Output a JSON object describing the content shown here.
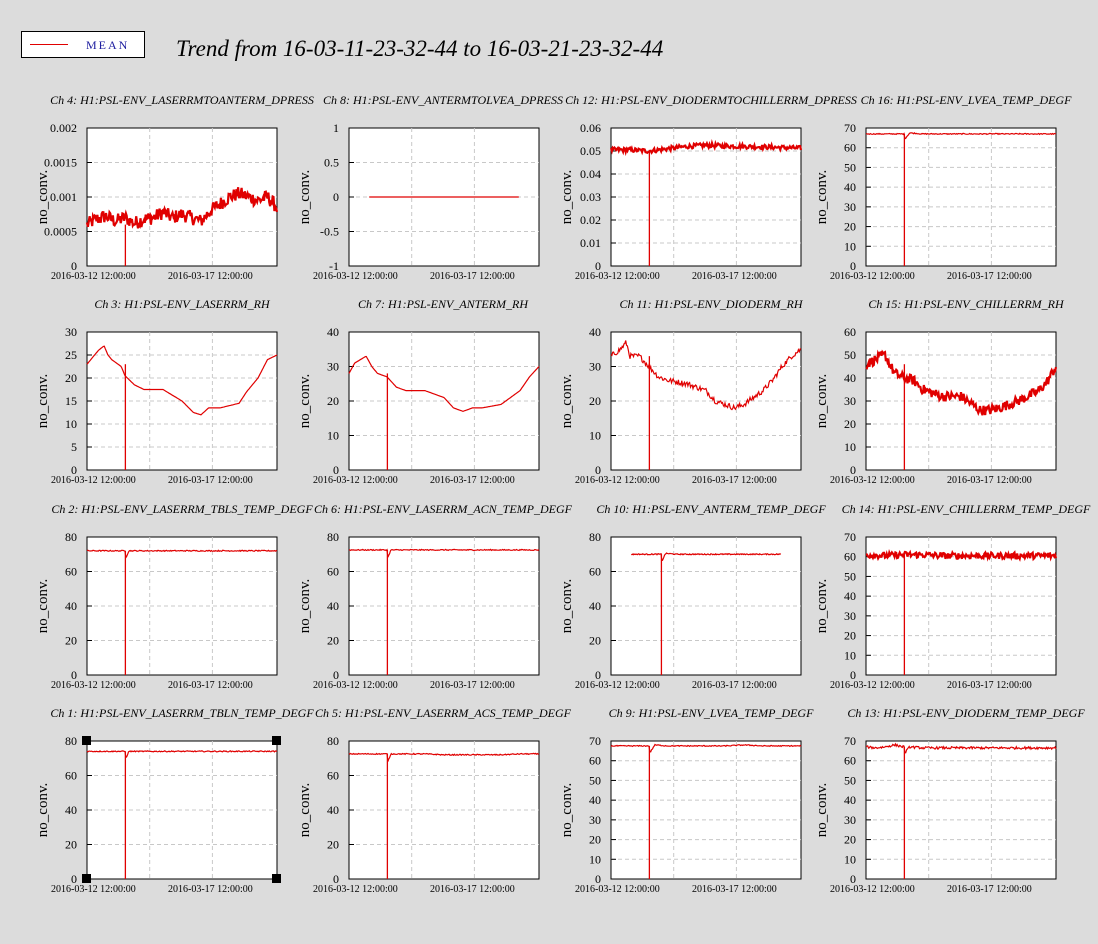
{
  "title": "Trend from 16-03-11-23-32-44 to 16-03-21-23-32-44",
  "legend": {
    "label": "MEAN",
    "color": "#e00000"
  },
  "chart_data": [
    {
      "type": "line",
      "title": "Ch 4: H1:PSL-ENV_LASERRMTOANTERM_DPRESS",
      "ylabel": "no_conv.",
      "yticks": [
        "0",
        "0.0005",
        "0.001",
        "0.0015",
        "0.002"
      ],
      "ylim": [
        0,
        0.002
      ],
      "xticks": [
        "2016-03-12 12:00:00",
        "2016-03-17 12:00:00"
      ],
      "xlim": [
        0,
        10
      ],
      "series": [
        {
          "color": "#e00000",
          "thick": true,
          "noise": 0.0001,
          "drop": {
            "x": 2.02,
            "to": 0
          },
          "x": [
            0,
            0.5,
            1,
            1.5,
            2,
            2.5,
            3,
            3.5,
            4,
            4.5,
            5,
            5.5,
            6,
            6.5,
            7,
            7.5,
            8,
            8.5,
            9,
            9.5,
            10
          ],
          "values": [
            0.0006,
            0.00068,
            0.00072,
            0.00065,
            0.0007,
            0.00062,
            0.00068,
            0.0007,
            0.00078,
            0.0007,
            0.00075,
            0.0007,
            0.00065,
            0.0008,
            0.0009,
            0.001,
            0.00105,
            0.001,
            0.00095,
            0.001,
            0.00085
          ]
        }
      ]
    },
    {
      "type": "line",
      "title": "Ch 8: H1:PSL-ENV_ANTERMTOLVEA_DPRESS",
      "ylabel": "no_conv.",
      "yticks": [
        "-1",
        "-0.5",
        "0",
        "0.5",
        "1"
      ],
      "ylim": [
        -1,
        1
      ],
      "xticks": [
        "2016-03-12 12:00:00",
        "2016-03-17 12:00:00"
      ],
      "xlim": [
        -1.35,
        11.35
      ],
      "series": [
        {
          "color": "#e00000",
          "x": [
            0,
            10
          ],
          "values": [
            0,
            0
          ]
        }
      ]
    },
    {
      "type": "line",
      "title": "Ch 12: H1:PSL-ENV_DIODERMTOCHILLERRM_DPRESS",
      "ylabel": "no_conv.",
      "yticks": [
        "0",
        "0.01",
        "0.02",
        "0.03",
        "0.04",
        "0.05",
        "0.06"
      ],
      "ylim": [
        0,
        0.06
      ],
      "xticks": [
        "2016-03-12 12:00:00",
        "2016-03-17 12:00:00"
      ],
      "xlim": [
        0,
        10
      ],
      "series": [
        {
          "color": "#e00000",
          "thick": true,
          "noise": 0.001,
          "drop": {
            "x": 2.02,
            "to": 0
          },
          "x": [
            0,
            1,
            2,
            3,
            4,
            5,
            6,
            7,
            8,
            9,
            10
          ],
          "values": [
            0.0505,
            0.0505,
            0.05,
            0.051,
            0.052,
            0.0525,
            0.0522,
            0.052,
            0.0518,
            0.0515,
            0.0512
          ]
        }
      ]
    },
    {
      "type": "line",
      "title": "Ch 16: H1:PSL-ENV_LVEA_TEMP_DEGF",
      "ylabel": "no_conv.",
      "yticks": [
        "0",
        "10",
        "20",
        "30",
        "40",
        "50",
        "60",
        "70"
      ],
      "ylim": [
        0,
        70
      ],
      "xticks": [
        "2016-03-12 12:00:00",
        "2016-03-17 12:00:00"
      ],
      "xlim": [
        0,
        10
      ],
      "series": [
        {
          "color": "#e00000",
          "noise": 0.25,
          "drop": {
            "x": 2.02,
            "to": 0
          },
          "x": [
            0,
            1,
            2,
            2.05,
            2.3,
            3,
            4,
            5,
            6,
            7,
            8,
            9,
            10
          ],
          "values": [
            67,
            67,
            67,
            64.5,
            67.5,
            67,
            67,
            67,
            67,
            67,
            67,
            67,
            67
          ]
        }
      ]
    },
    {
      "type": "line",
      "title": "Ch 3: H1:PSL-ENV_LASERRM_RH",
      "ylabel": "no_conv.",
      "yticks": [
        "0",
        "5",
        "10",
        "15",
        "20",
        "25",
        "30"
      ],
      "ylim": [
        0,
        30
      ],
      "xticks": [
        "2016-03-12 12:00:00",
        "2016-03-17 12:00:00"
      ],
      "xlim": [
        0,
        10
      ],
      "series": [
        {
          "color": "#e00000",
          "drop": {
            "x": 2.02,
            "to": 0
          },
          "x": [
            0,
            0.4,
            0.6,
            0.9,
            1.1,
            1.3,
            1.8,
            2,
            2.5,
            3,
            4,
            5,
            5.6,
            6,
            6.4,
            7,
            8,
            8.4,
            9,
            9.5,
            10
          ],
          "values": [
            23,
            25,
            26,
            27,
            25,
            24,
            22.5,
            20.5,
            18.5,
            17.5,
            17.5,
            15,
            12.5,
            12,
            13.5,
            13.5,
            14.5,
            17,
            20,
            24,
            25
          ]
        }
      ]
    },
    {
      "type": "line",
      "title": "Ch 7: H1:PSL-ENV_ANTERM_RH",
      "ylabel": "no_conv.",
      "yticks": [
        "0",
        "10",
        "20",
        "30",
        "40"
      ],
      "ylim": [
        0,
        40
      ],
      "xticks": [
        "2016-03-12 12:00:00",
        "2016-03-17 12:00:00"
      ],
      "xlim": [
        0,
        10
      ],
      "series": [
        {
          "color": "#e00000",
          "drop": {
            "x": 2.02,
            "to": 0
          },
          "x": [
            0,
            0.3,
            0.6,
            0.9,
            1.2,
            1.5,
            2,
            2.5,
            3,
            4,
            5,
            5.5,
            6,
            6.5,
            7,
            8,
            8.5,
            9,
            9.5,
            10
          ],
          "values": [
            28,
            31,
            32,
            33,
            30,
            28,
            27,
            24,
            23,
            23,
            21,
            18,
            17,
            18,
            18,
            19,
            21,
            23,
            27,
            30
          ]
        }
      ]
    },
    {
      "type": "line",
      "title": "Ch 11: H1:PSL-ENV_DIODERM_RH",
      "ylabel": "no_conv.",
      "yticks": [
        "0",
        "10",
        "20",
        "30",
        "40"
      ],
      "ylim": [
        0,
        40
      ],
      "xticks": [
        "2016-03-12 12:00:00",
        "2016-03-17 12:00:00"
      ],
      "xlim": [
        0,
        10
      ],
      "series": [
        {
          "color": "#e00000",
          "noise": 0.8,
          "drop": {
            "x": 2.02,
            "to": 0
          },
          "x": [
            0,
            0.5,
            0.8,
            1,
            1.5,
            2,
            2.5,
            3,
            4,
            5,
            5.5,
            6,
            6.5,
            7,
            8,
            8.5,
            9,
            9.5,
            10
          ],
          "values": [
            33,
            35,
            37,
            33,
            33,
            30,
            27,
            26,
            25,
            23,
            20,
            19,
            18,
            19,
            23,
            26,
            30,
            33,
            35
          ]
        }
      ]
    },
    {
      "type": "line",
      "title": "Ch 15: H1:PSL-ENV_CHILLERRM_RH",
      "ylabel": "no_conv.",
      "yticks": [
        "0",
        "10",
        "20",
        "30",
        "40",
        "50",
        "60"
      ],
      "ylim": [
        0,
        60
      ],
      "xticks": [
        "2016-03-12 12:00:00",
        "2016-03-17 12:00:00"
      ],
      "xlim": [
        0,
        10
      ],
      "series": [
        {
          "color": "#e00000",
          "thick": true,
          "noise": 2.2,
          "drop": {
            "x": 2.02,
            "to": 0
          },
          "x": [
            0,
            0.5,
            1,
            1.5,
            2,
            2.5,
            3,
            4,
            5,
            5.5,
            6,
            6.5,
            7,
            8,
            9,
            9.5,
            10
          ],
          "values": [
            46,
            48,
            50,
            42,
            40,
            39,
            35,
            32,
            32,
            29,
            26,
            26,
            27,
            30,
            34,
            38,
            45
          ]
        }
      ]
    },
    {
      "type": "line",
      "title": "Ch 2: H1:PSL-ENV_LASERRM_TBLS_TEMP_DEGF",
      "ylabel": "no_conv.",
      "yticks": [
        "0",
        "20",
        "40",
        "60",
        "80"
      ],
      "ylim": [
        0,
        80
      ],
      "xticks": [
        "2016-03-12 12:00:00",
        "2016-03-17 12:00:00"
      ],
      "xlim": [
        0,
        10
      ],
      "series": [
        {
          "color": "#e00000",
          "noise": 0.3,
          "drop": {
            "x": 2.02,
            "to": 0
          },
          "x": [
            0,
            1,
            2,
            2.05,
            2.2,
            3,
            4,
            5,
            6,
            7,
            8,
            9,
            10
          ],
          "values": [
            72,
            72,
            72,
            68,
            72,
            72,
            72,
            72,
            72,
            72,
            72,
            72,
            72
          ]
        }
      ]
    },
    {
      "type": "line",
      "title": "Ch 6: H1:PSL-ENV_LASERRM_ACN_TEMP_DEGF",
      "ylabel": "no_conv.",
      "yticks": [
        "0",
        "20",
        "40",
        "60",
        "80"
      ],
      "ylim": [
        0,
        80
      ],
      "xticks": [
        "2016-03-12 12:00:00",
        "2016-03-17 12:00:00"
      ],
      "xlim": [
        0,
        10
      ],
      "series": [
        {
          "color": "#e00000",
          "noise": 0.3,
          "drop": {
            "x": 2.02,
            "to": 0
          },
          "x": [
            0,
            1,
            2,
            2.05,
            2.2,
            3,
            4,
            5,
            6,
            7,
            8,
            9,
            10
          ],
          "values": [
            72.5,
            72.5,
            72.5,
            68,
            72.5,
            72.5,
            72.5,
            72.5,
            72.5,
            72.5,
            72.5,
            72.5,
            72.5
          ]
        }
      ]
    },
    {
      "type": "line",
      "title": "Ch 10: H1:PSL-ENV_ANTERM_TEMP_DEGF",
      "ylabel": "no_conv.",
      "yticks": [
        "0",
        "20",
        "40",
        "60",
        "80"
      ],
      "ylim": [
        0,
        80
      ],
      "xticks": [
        "2016-03-12 12:00:00",
        "2016-03-17 12:00:00"
      ],
      "xlim": [
        -1.35,
        11.35
      ],
      "series": [
        {
          "color": "#e00000",
          "noise": 0.3,
          "drop": {
            "x": 2.02,
            "to": 0
          },
          "x": [
            0,
            1,
            2,
            2.05,
            2.3,
            3,
            4,
            5,
            6,
            7,
            8,
            9,
            10
          ],
          "values": [
            70,
            70,
            70,
            66,
            70.5,
            70,
            70,
            70,
            70,
            70,
            70,
            70,
            70
          ]
        }
      ]
    },
    {
      "type": "line",
      "title": "Ch 14: H1:PSL-ENV_CHILLERRM_TEMP_DEGF",
      "ylabel": "no_conv.",
      "yticks": [
        "0",
        "10",
        "20",
        "30",
        "40",
        "50",
        "60",
        "70"
      ],
      "ylim": [
        0,
        70
      ],
      "xticks": [
        "2016-03-12 12:00:00",
        "2016-03-17 12:00:00"
      ],
      "xlim": [
        0,
        10
      ],
      "series": [
        {
          "color": "#e00000",
          "thick": true,
          "noise": 1.6,
          "drop": {
            "x": 2.02,
            "to": 0
          },
          "x": [
            0,
            1,
            2,
            3,
            4,
            5,
            6,
            7,
            8,
            9,
            10
          ],
          "values": [
            61,
            60.5,
            61,
            61,
            60.5,
            60.5,
            60.5,
            60.5,
            60.5,
            60.5,
            60.5
          ]
        }
      ]
    },
    {
      "type": "line",
      "title": "Ch 1: H1:PSL-ENV_LASERRM_TBLN_TEMP_DEGF",
      "ylabel": "no_conv.",
      "yticks": [
        "0",
        "20",
        "40",
        "60",
        "80"
      ],
      "ylim": [
        0,
        80
      ],
      "xticks": [
        "2016-03-12 12:00:00",
        "2016-03-17 12:00:00"
      ],
      "xlim": [
        0,
        10
      ],
      "selected": true,
      "series": [
        {
          "color": "#e00000",
          "noise": 0.3,
          "drop": {
            "x": 2.02,
            "to": 0
          },
          "x": [
            0,
            1,
            2,
            2.05,
            2.2,
            3,
            4,
            5,
            6,
            7,
            8,
            9,
            10
          ],
          "values": [
            74,
            74,
            74,
            70,
            74,
            74,
            74,
            74,
            74,
            74,
            74,
            74,
            74
          ]
        }
      ]
    },
    {
      "type": "line",
      "title": "Ch 5: H1:PSL-ENV_LASERRM_ACS_TEMP_DEGF",
      "ylabel": "no_conv.",
      "yticks": [
        "0",
        "20",
        "40",
        "60",
        "80"
      ],
      "ylim": [
        0,
        80
      ],
      "xticks": [
        "2016-03-12 12:00:00",
        "2016-03-17 12:00:00"
      ],
      "xlim": [
        0,
        10
      ],
      "series": [
        {
          "color": "#e00000",
          "noise": 0.3,
          "drop": {
            "x": 2.02,
            "to": 0
          },
          "x": [
            0,
            1,
            2,
            2.05,
            2.2,
            3,
            4,
            5,
            6,
            7,
            8,
            9,
            10
          ],
          "values": [
            72.5,
            72.5,
            72.5,
            68,
            72.5,
            72.5,
            72.5,
            72,
            72,
            72,
            72,
            72.5,
            72.5
          ]
        }
      ]
    },
    {
      "type": "line",
      "title": "Ch 9: H1:PSL-ENV_LVEA_TEMP_DEGF",
      "ylabel": "no_conv.",
      "yticks": [
        "0",
        "10",
        "20",
        "30",
        "40",
        "50",
        "60",
        "70"
      ],
      "ylim": [
        0,
        70
      ],
      "xticks": [
        "2016-03-12 12:00:00",
        "2016-03-17 12:00:00"
      ],
      "xlim": [
        0,
        10
      ],
      "series": [
        {
          "color": "#e00000",
          "noise": 0.25,
          "drop": {
            "x": 2.02,
            "to": 0
          },
          "x": [
            0,
            1,
            2,
            2.05,
            2.3,
            3,
            4,
            5,
            6,
            7,
            8,
            9,
            10
          ],
          "values": [
            67.5,
            67.5,
            67.5,
            64,
            68,
            67.5,
            67.5,
            67.5,
            67.5,
            68,
            67.5,
            67.5,
            67.5
          ]
        }
      ]
    },
    {
      "type": "line",
      "title": "Ch 13: H1:PSL-ENV_DIODERM_TEMP_DEGF",
      "ylabel": "no_conv.",
      "yticks": [
        "0",
        "10",
        "20",
        "30",
        "40",
        "50",
        "60",
        "70"
      ],
      "ylim": [
        0,
        70
      ],
      "xticks": [
        "2016-03-12 12:00:00",
        "2016-03-17 12:00:00"
      ],
      "xlim": [
        0,
        10
      ],
      "series": [
        {
          "color": "#e00000",
          "noise": 0.6,
          "drop": {
            "x": 2.02,
            "to": 0
          },
          "x": [
            0,
            0.5,
            1,
            1.5,
            2,
            2.05,
            2.3,
            3,
            4,
            5,
            6,
            7,
            8,
            9,
            10
          ],
          "values": [
            67,
            66.5,
            67,
            68,
            67,
            64,
            67,
            66.5,
            66.5,
            66.5,
            66.5,
            66.5,
            66.5,
            66.5,
            66.5
          ]
        }
      ]
    }
  ]
}
